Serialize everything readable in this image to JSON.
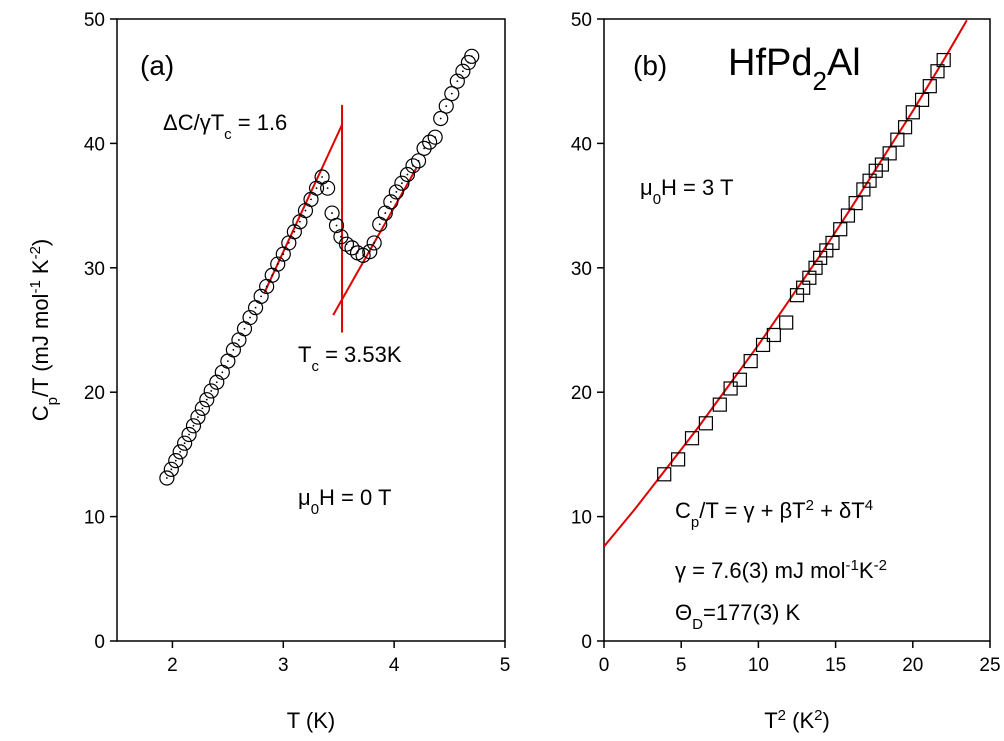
{
  "chart_data": [
    {
      "type": "scatter",
      "marker": "circle",
      "color": "#000000",
      "xlim": [
        1.5,
        5
      ],
      "xticks": [
        2,
        3,
        4,
        5
      ],
      "ylim": [
        0,
        50
      ],
      "yticks": [
        0,
        10,
        20,
        30,
        40,
        50
      ],
      "xlabel": [
        {
          "text": "T (K)"
        }
      ],
      "ylabel": [
        {
          "text": "C"
        },
        {
          "text": "p",
          "shift": "sub"
        },
        {
          "text": "/T (mJ mol"
        },
        {
          "text": "-1",
          "shift": "super"
        },
        {
          "text": " K"
        },
        {
          "text": "-2",
          "shift": "super"
        },
        {
          "text": ")"
        }
      ],
      "x": [
        1.95,
        1.99,
        2.03,
        2.07,
        2.11,
        2.15,
        2.19,
        2.23,
        2.27,
        2.31,
        2.35,
        2.4,
        2.45,
        2.5,
        2.55,
        2.6,
        2.65,
        2.7,
        2.75,
        2.8,
        2.85,
        2.9,
        2.95,
        3.0,
        3.05,
        3.1,
        3.15,
        3.2,
        3.25,
        3.3,
        3.35,
        3.4,
        3.44,
        3.48,
        3.52,
        3.57,
        3.62,
        3.67,
        3.72,
        3.78,
        3.82,
        3.87,
        3.92,
        3.97,
        4.02,
        4.07,
        4.12,
        4.17,
        4.22,
        4.27,
        4.32,
        4.37,
        4.42,
        4.47,
        4.52,
        4.57,
        4.62,
        4.67,
        4.7
      ],
      "values": [
        13.1,
        13.8,
        14.5,
        15.2,
        15.9,
        16.6,
        17.3,
        18.0,
        18.7,
        19.4,
        20.1,
        20.8,
        21.6,
        22.5,
        23.4,
        24.2,
        25.1,
        26.0,
        26.8,
        27.7,
        28.5,
        29.4,
        30.3,
        31.1,
        32.0,
        32.9,
        33.7,
        34.6,
        35.5,
        36.4,
        37.3,
        36.4,
        34.4,
        33.4,
        32.5,
        31.9,
        31.6,
        31.2,
        31.0,
        31.3,
        32.0,
        33.5,
        34.4,
        35.3,
        36.1,
        36.8,
        37.5,
        38.2,
        38.6,
        39.6,
        40.1,
        40.5,
        42.0,
        43.0,
        44.0,
        45.0,
        45.8,
        46.5,
        47.0
      ],
      "fits": [
        {
          "color": "#e00000",
          "x": [
            2.83,
            3.53
          ],
          "y": [
            28.0,
            41.5
          ]
        },
        {
          "color": "#e00000",
          "x": [
            3.45,
            4.2
          ],
          "y": [
            26.2,
            38.0
          ]
        },
        {
          "color": "#e00000",
          "x": [
            3.53,
            3.53
          ],
          "y": [
            24.8,
            43.1
          ]
        }
      ],
      "annotations": [
        {
          "parts": [
            {
              "text": "(a)"
            }
          ]
        },
        {
          "parts": [
            {
              "text": "ΔC/γT"
            },
            {
              "text": "c",
              "shift": "sub"
            },
            {
              "text": " = 1.6"
            }
          ]
        },
        {
          "parts": [
            {
              "text": "T"
            },
            {
              "text": "c",
              "shift": "sub"
            },
            {
              "text": " = 3.53K"
            }
          ]
        },
        {
          "parts": [
            {
              "text": "μ"
            },
            {
              "text": "0",
              "shift": "sub"
            },
            {
              "text": "H = 0 T"
            }
          ]
        }
      ]
    },
    {
      "type": "scatter",
      "marker": "square",
      "color": "#000000",
      "xlim": [
        0,
        25
      ],
      "xticks": [
        0,
        5,
        10,
        15,
        20,
        25
      ],
      "ylim": [
        0,
        50
      ],
      "yticks": [
        0,
        10,
        20,
        30,
        40,
        50
      ],
      "xlabel": [
        {
          "text": "T"
        },
        {
          "text": "2",
          "shift": "super"
        },
        {
          "text": " (K"
        },
        {
          "text": "2",
          "shift": "super"
        },
        {
          "text": ")"
        }
      ],
      "x": [
        3.9,
        4.8,
        5.7,
        6.6,
        7.5,
        8.2,
        8.8,
        9.5,
        10.3,
        11.0,
        11.8,
        12.5,
        12.9,
        13.3,
        13.7,
        14.0,
        14.4,
        14.8,
        15.3,
        15.8,
        16.3,
        16.8,
        17.2,
        17.6,
        18.0,
        18.5,
        19.0,
        19.5,
        20.0,
        20.6,
        21.1,
        21.6,
        22.0
      ],
      "values": [
        13.4,
        14.6,
        16.3,
        17.5,
        19.0,
        20.3,
        21.0,
        22.5,
        23.8,
        24.6,
        25.6,
        27.8,
        28.4,
        29.2,
        30.0,
        30.8,
        31.4,
        32.0,
        33.1,
        34.2,
        35.2,
        36.3,
        37.0,
        37.8,
        38.3,
        39.2,
        40.3,
        41.3,
        42.5,
        43.5,
        44.6,
        45.8,
        46.7
      ],
      "fits": [
        {
          "color": "#e00000",
          "x": [
            0,
            2,
            4,
            6,
            8,
            10,
            12,
            14,
            16,
            18,
            20,
            22,
            23.5
          ],
          "y": [
            7.6,
            10.6,
            13.8,
            17.0,
            20.4,
            23.8,
            27.4,
            31.0,
            34.8,
            38.7,
            42.6,
            46.7,
            49.9
          ]
        }
      ],
      "annotations": [
        {
          "parts": [
            {
              "text": "(b)"
            }
          ]
        },
        {
          "parts": [
            {
              "text": "HfPd"
            },
            {
              "text": "2",
              "shift": "sub"
            },
            {
              "text": "Al"
            }
          ]
        },
        {
          "parts": [
            {
              "text": "μ"
            },
            {
              "text": "0",
              "shift": "sub"
            },
            {
              "text": "H = 3 T"
            }
          ]
        },
        {
          "parts": [
            {
              "text": "C"
            },
            {
              "text": "p",
              "shift": "sub"
            },
            {
              "text": "/T = γ + βT"
            },
            {
              "text": "2",
              "shift": "super"
            },
            {
              "text": " + δT"
            },
            {
              "text": "4",
              "shift": "super"
            }
          ]
        },
        {
          "parts": [
            {
              "text": "γ = 7.6(3) mJ mol"
            },
            {
              "text": "-1",
              "shift": "super"
            },
            {
              "text": "K"
            },
            {
              "text": "-2",
              "shift": "super"
            }
          ]
        },
        {
          "parts": [
            {
              "text": "Θ"
            },
            {
              "text": "D",
              "shift": "sub"
            },
            {
              "text": "=177(3) K"
            }
          ]
        }
      ]
    }
  ]
}
